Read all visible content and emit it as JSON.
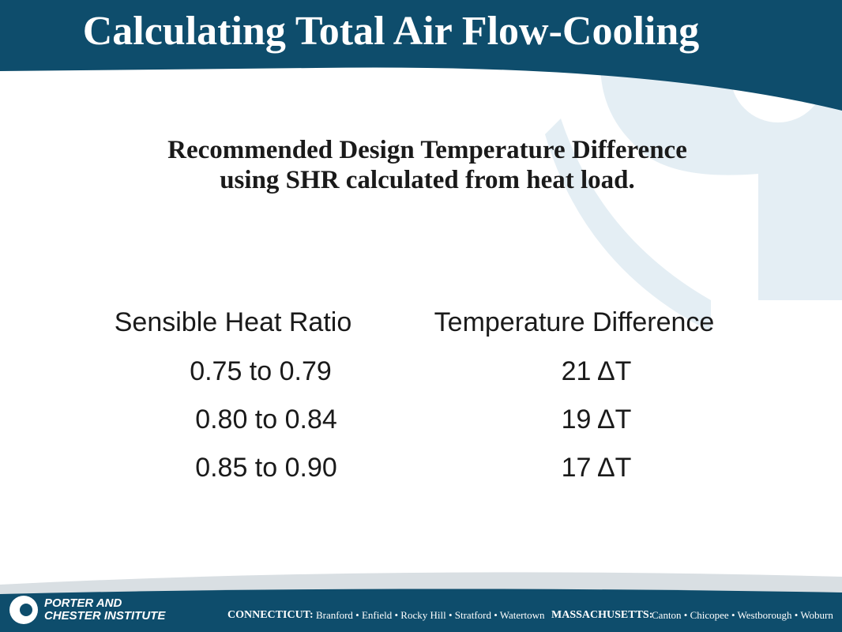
{
  "header": {
    "title": "Calculating Total Air Flow-Cooling"
  },
  "subtitle": [
    "Recommended Design Temperature Difference",
    "using SHR calculated from heat load."
  ],
  "table": {
    "header": [
      "Sensible Heat Ratio",
      "Temperature Difference"
    ],
    "rows": [
      [
        "0.75 to 0.79",
        "21 ΔT"
      ],
      [
        "0.80 to 0.84",
        "19 ΔT"
      ],
      [
        "0.85 to 0.90",
        "17 ΔT"
      ]
    ]
  },
  "footer": {
    "brand": [
      "PORTER AND",
      "CHESTER INSTITUTE"
    ],
    "state1": "CONNECTICUT:",
    "towns1": "Branford • Enfield • Rocky Hill • Stratford • Watertown",
    "state2": "MASSACHUSETTS:",
    "towns2": "Canton • Chicopee • Westborough • Woburn"
  }
}
